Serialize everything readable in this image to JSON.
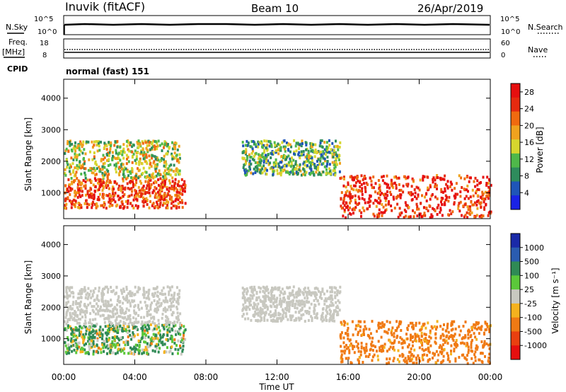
{
  "header": {
    "station": "Inuvik (fitACF)",
    "beam": "Beam 10",
    "date": "26/Apr/2019"
  },
  "top_panels": {
    "nsky_label": "N.Sky",
    "nsky_ticks": [
      "10^5",
      "10^0"
    ],
    "nsearch_label": "N.Search",
    "nsearch_ticks": [
      "10^5",
      "10^0"
    ],
    "freq_label_1": "Freq.",
    "freq_label_2": "[MHz]",
    "freq_ticks": [
      "18",
      "8"
    ],
    "nave_label": "Nave",
    "nave_ticks": [
      "60",
      "0"
    ],
    "cpid_label": "CPID",
    "cpid_value": "normal (fast) 151"
  },
  "colors": {
    "power": [
      "#1a22e6",
      "#1f55b8",
      "#2e8c5c",
      "#4fb84a",
      "#d6d62e",
      "#f0a21e",
      "#f06a0f",
      "#e62a0f",
      "#e60f0f"
    ],
    "velocity": [
      "#1a2aa8",
      "#2a5cb0",
      "#2f8a55",
      "#5bc83a",
      "#c8c8c0",
      "#f5b21e",
      "#f07a14",
      "#ea4010",
      "#e60f0f"
    ]
  },
  "chart_data": [
    {
      "type": "heatmap",
      "title": "Power",
      "xlabel": "Time UT",
      "ylabel": "Slant Range [km]",
      "x_ticks": [
        "00:00",
        "04:00",
        "08:00",
        "12:00",
        "16:00",
        "20:00",
        "00:00"
      ],
      "xlim": [
        0,
        24
      ],
      "y_ticks": [
        1000,
        2000,
        3000,
        4000
      ],
      "ylim": [
        180,
        4600
      ],
      "colorbar": {
        "label": "Power [dB]",
        "ticks": [
          4,
          8,
          12,
          16,
          20,
          24,
          28
        ],
        "range": [
          0,
          30
        ]
      },
      "regions": [
        {
          "t": [
            0.0,
            6.8
          ],
          "r": [
            550,
            1500
          ],
          "center": 24,
          "label": "strong band ~1000 km"
        },
        {
          "t": [
            0.0,
            6.5
          ],
          "r": [
            1500,
            2700
          ],
          "center": 15,
          "label": "upper band ~2000 km"
        },
        {
          "t": [
            10.0,
            15.5
          ],
          "r": [
            1600,
            2700
          ],
          "center": 11,
          "label": "midday band"
        },
        {
          "t": [
            15.5,
            24.0
          ],
          "r": [
            250,
            1600
          ],
          "center": 26,
          "label": "evening band"
        }
      ]
    },
    {
      "type": "heatmap",
      "title": "Velocity",
      "xlabel": "Time UT",
      "ylabel": "Slant Range [km]",
      "x_ticks": [
        "00:00",
        "04:00",
        "08:00",
        "12:00",
        "16:00",
        "20:00",
        "00:00"
      ],
      "xlim": [
        0,
        24
      ],
      "y_ticks": [
        1000,
        2000,
        3000,
        4000
      ],
      "ylim": [
        180,
        4600
      ],
      "colorbar": {
        "label": "Velocity [m s⁻¹]",
        "ticks": [
          1000,
          500,
          100,
          25,
          -25,
          -100,
          -500,
          -1000
        ]
      },
      "regions": [
        {
          "t": [
            0.0,
            6.8
          ],
          "r": [
            550,
            1500
          ],
          "center": 80,
          "label": "mixed green/orange band"
        },
        {
          "t": [
            0.0,
            6.5
          ],
          "r": [
            1500,
            2700
          ],
          "center": 0,
          "label": "ground scatter grey"
        },
        {
          "t": [
            10.0,
            15.5
          ],
          "r": [
            1600,
            2700
          ],
          "center": 0,
          "label": "grey midday band"
        },
        {
          "t": [
            15.5,
            24.0
          ],
          "r": [
            250,
            1600
          ],
          "center": -250,
          "label": "orange/red evening band"
        }
      ]
    }
  ]
}
